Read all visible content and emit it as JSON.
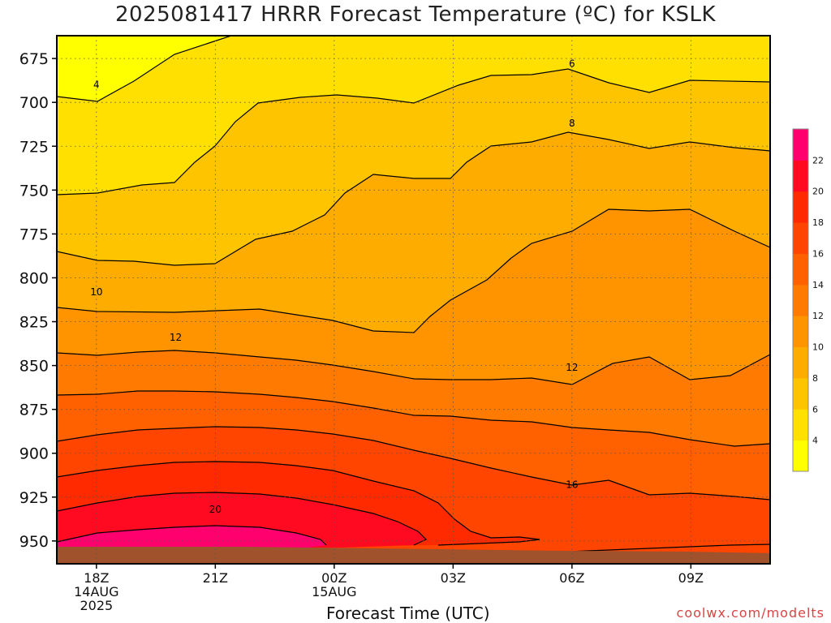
{
  "chart_data": {
    "type": "contour",
    "title": "2025081417 HRRR Forecast Temperature (ºC) for KSLK",
    "xlabel": "Forecast Time (UTC)",
    "ylabel": "",
    "credit": "coolwx.com/modelts",
    "x_ticks": [
      {
        "label": "18Z",
        "sub": [
          "14AUG",
          "2025"
        ],
        "hour": 0
      },
      {
        "label": "21Z",
        "sub": [],
        "hour": 3
      },
      {
        "label": "00Z",
        "sub": [
          "15AUG"
        ],
        "hour": 6
      },
      {
        "label": "03Z",
        "sub": [],
        "hour": 9
      },
      {
        "label": "06Z",
        "sub": [],
        "hour": 12
      },
      {
        "label": "09Z",
        "sub": [],
        "hour": 15
      }
    ],
    "xlim_hours": [
      -1,
      17
    ],
    "y_ticks": [
      675,
      700,
      725,
      750,
      775,
      800,
      825,
      850,
      875,
      900,
      925,
      950
    ],
    "ylim_hpa": [
      662,
      963
    ],
    "y_axis_inverted": true,
    "grid": true,
    "colorbar": {
      "levels": [
        4,
        6,
        8,
        10,
        12,
        14,
        16,
        18,
        20,
        22
      ],
      "colors": [
        "#ffff00",
        "#ffe000",
        "#ffc400",
        "#ffac00",
        "#ff9400",
        "#ff7a00",
        "#ff6000",
        "#ff4500",
        "#ff2a00",
        "#ff0a20",
        "#ff006e"
      ]
    },
    "contour_labels": [
      {
        "text": "4",
        "hour": 0.0,
        "hpa": 690
      },
      {
        "text": "6",
        "hour": 12.0,
        "hpa": 678
      },
      {
        "text": "8",
        "hour": 12.0,
        "hpa": 712
      },
      {
        "text": "10",
        "hour": 0.0,
        "hpa": 808
      },
      {
        "text": "12",
        "hour": 2.0,
        "hpa": 834
      },
      {
        "text": "12",
        "hour": 12.0,
        "hpa": 851
      },
      {
        "text": "16",
        "hour": 12.0,
        "hpa": 918
      },
      {
        "text": "20",
        "hour": 3.0,
        "hpa": 932
      }
    ],
    "surface_hpa": 957
  }
}
